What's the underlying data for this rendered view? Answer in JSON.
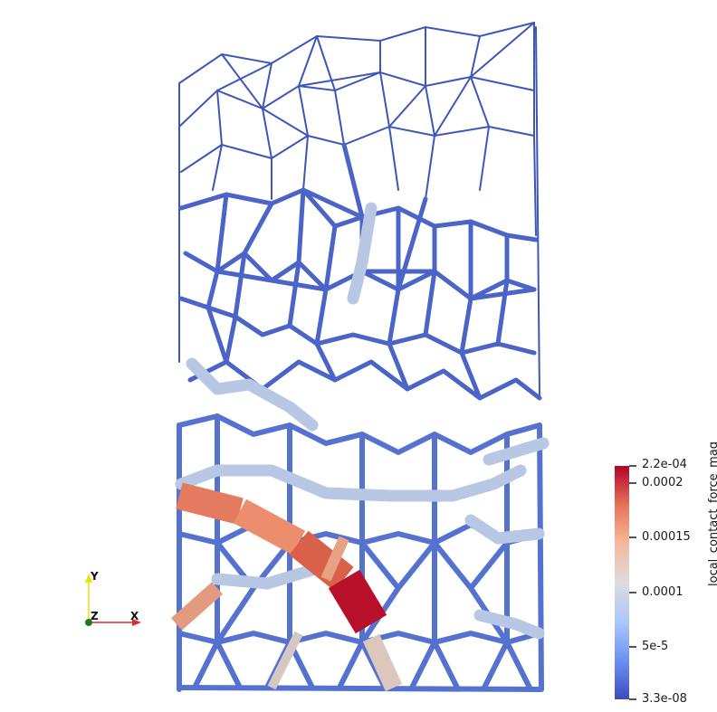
{
  "colorbar": {
    "title": "local_contact_force_mag",
    "ticks": [
      {
        "label": "2.2e-04",
        "value": 0.00022
      },
      {
        "label": "0.0002",
        "value": 0.0002
      },
      {
        "label": "0.00015",
        "value": 0.00015
      },
      {
        "label": "0.0001",
        "value": 0.0001
      },
      {
        "label": "5e-5",
        "value": 5e-05
      },
      {
        "label": "3.3e-08",
        "value": 3.3e-08
      }
    ],
    "range": [
      3.3e-08,
      0.00022
    ],
    "colormap": [
      "#3b4cc0",
      "#6f92f3",
      "#aac7fd",
      "#dddcdc",
      "#f7b89c",
      "#e7745b",
      "#b40426"
    ]
  },
  "orientation_axes": {
    "x_label": "X",
    "y_label": "Y",
    "z_label": "Z",
    "x_color": "#e8262a",
    "y_color": "#e6e600",
    "z_color": "#1e7a1e"
  }
}
